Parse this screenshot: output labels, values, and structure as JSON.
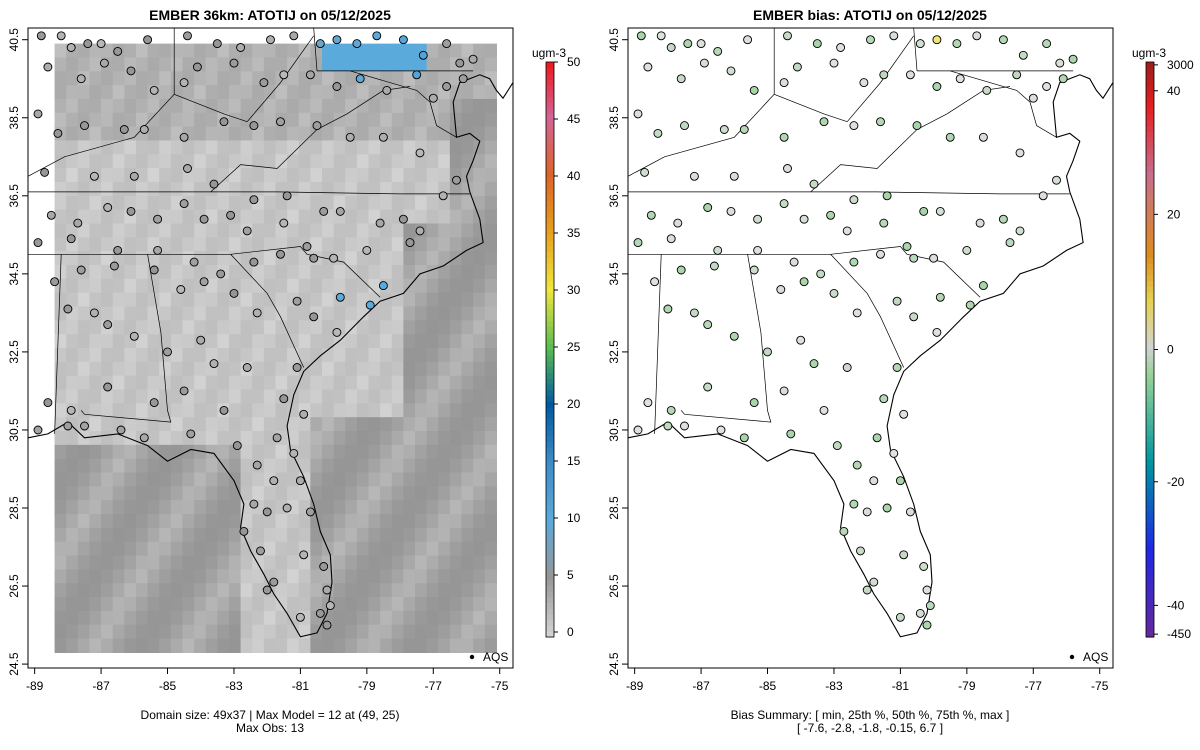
{
  "panels": {
    "left": {
      "title": "EMBER 36km: ATOTIJ on 05/12/2025",
      "colorbar_unit": "ugm-3",
      "colorbar_ticks": [
        "0",
        "5",
        "10",
        "15",
        "20",
        "25",
        "30",
        "35",
        "40",
        "45",
        "50"
      ],
      "legend_label": "AQS",
      "footer_line1": "Domain size: 49x37 | Max Model = 12 at (49, 25)",
      "footer_line2": "Max Obs: 13"
    },
    "right": {
      "title": "EMBER bias: ATOTIJ on 05/12/2025",
      "colorbar_unit": "ugm-3",
      "colorbar_ticks": [
        "3000",
        "40",
        "20",
        "0",
        "-20",
        "-40",
        "-450"
      ],
      "legend_label": "AQS",
      "footer_line1": "Bias Summary: [ min, 25th %, 50th %, 75th %, max ]",
      "footer_line2": "[ -7.6,   -2.8,   -1.8,   -0.15,   6.7 ]"
    }
  },
  "chart_data": [
    {
      "type": "heatmap",
      "title": "EMBER 36km: ATOTIJ on 05/12/2025",
      "x_ticks": [
        "-89",
        "-87",
        "-85",
        "-83",
        "-81",
        "-79",
        "-77",
        "-75"
      ],
      "y_ticks": [
        "24.5",
        "26.5",
        "28.5",
        "30.5",
        "32.5",
        "34.5",
        "36.5",
        "38.5",
        "40.5"
      ],
      "xlim": [
        -89.2,
        -74.6
      ],
      "ylim": [
        24.4,
        40.8
      ],
      "colorbar_range": [
        0,
        50
      ],
      "colorbar_unit": "ugm-3",
      "legend": "AQS",
      "grid": false
    },
    {
      "type": "scatter",
      "title": "EMBER bias: ATOTIJ on 05/12/2025",
      "x_ticks": [
        "-89",
        "-87",
        "-85",
        "-83",
        "-81",
        "-79",
        "-77",
        "-75"
      ],
      "y_ticks": [
        "24.5",
        "26.5",
        "28.5",
        "30.5",
        "32.5",
        "34.5",
        "36.5",
        "38.5",
        "40.5"
      ],
      "xlim": [
        -89.2,
        -74.6
      ],
      "ylim": [
        24.4,
        40.8
      ],
      "colorbar_range": [
        -450,
        3000
      ],
      "colorbar_unit": "ugm-3",
      "bias_summary": {
        "min": -7.6,
        "p25": -2.8,
        "p50": -1.8,
        "p75": -0.15,
        "max": 6.7
      },
      "legend": "AQS",
      "grid": false
    }
  ]
}
